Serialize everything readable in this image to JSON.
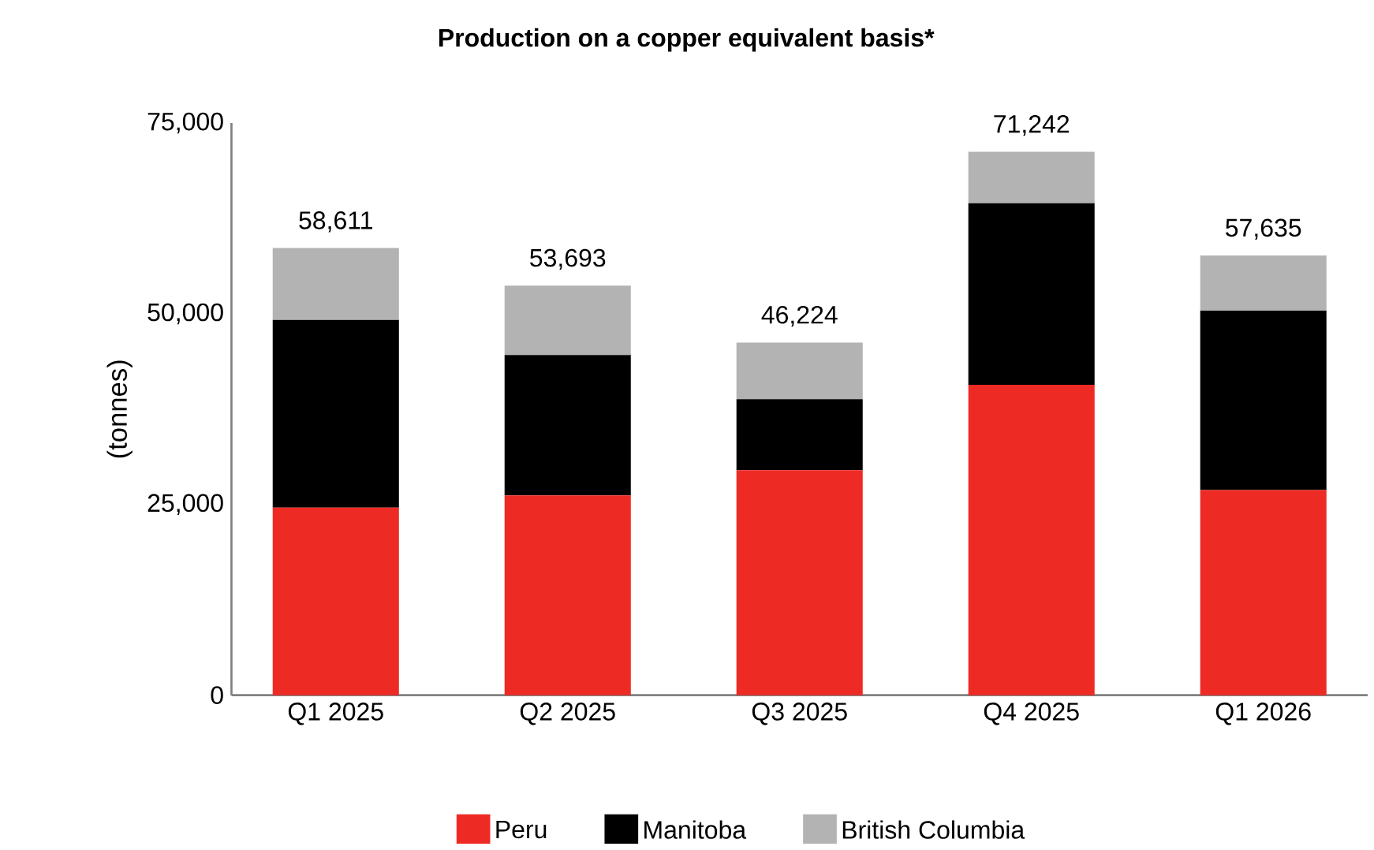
{
  "chart_data": {
    "type": "bar",
    "stacked": true,
    "title": "Production on a copper equivalent basis*",
    "ylabel": "(tonnes)",
    "categories": [
      "Q1 2025",
      "Q2 2025",
      "Q3 2025",
      "Q4 2025",
      "Q1 2026"
    ],
    "series": [
      {
        "name": "Peru",
        "color": "#ee2a24",
        "values": [
          24600,
          26200,
          29500,
          40700,
          26900
        ]
      },
      {
        "name": "Manitoba",
        "color": "#000000",
        "values": [
          24600,
          18400,
          9300,
          23800,
          23500
        ]
      },
      {
        "name": "British Columbia",
        "color": "#b3b3b3",
        "values": [
          9411,
          9093,
          7424,
          6742,
          7235
        ]
      }
    ],
    "totals": [
      "58,611",
      "53,693",
      "46,224",
      "71,242",
      "57,635"
    ],
    "ylim": [
      0,
      75000
    ],
    "yticks": [
      {
        "value": 0,
        "label": "0"
      },
      {
        "value": 25000,
        "label": "25,000"
      },
      {
        "value": 50000,
        "label": "50,000"
      },
      {
        "value": 75000,
        "label": "75,000"
      }
    ],
    "legend": "bottom",
    "grid": false
  }
}
